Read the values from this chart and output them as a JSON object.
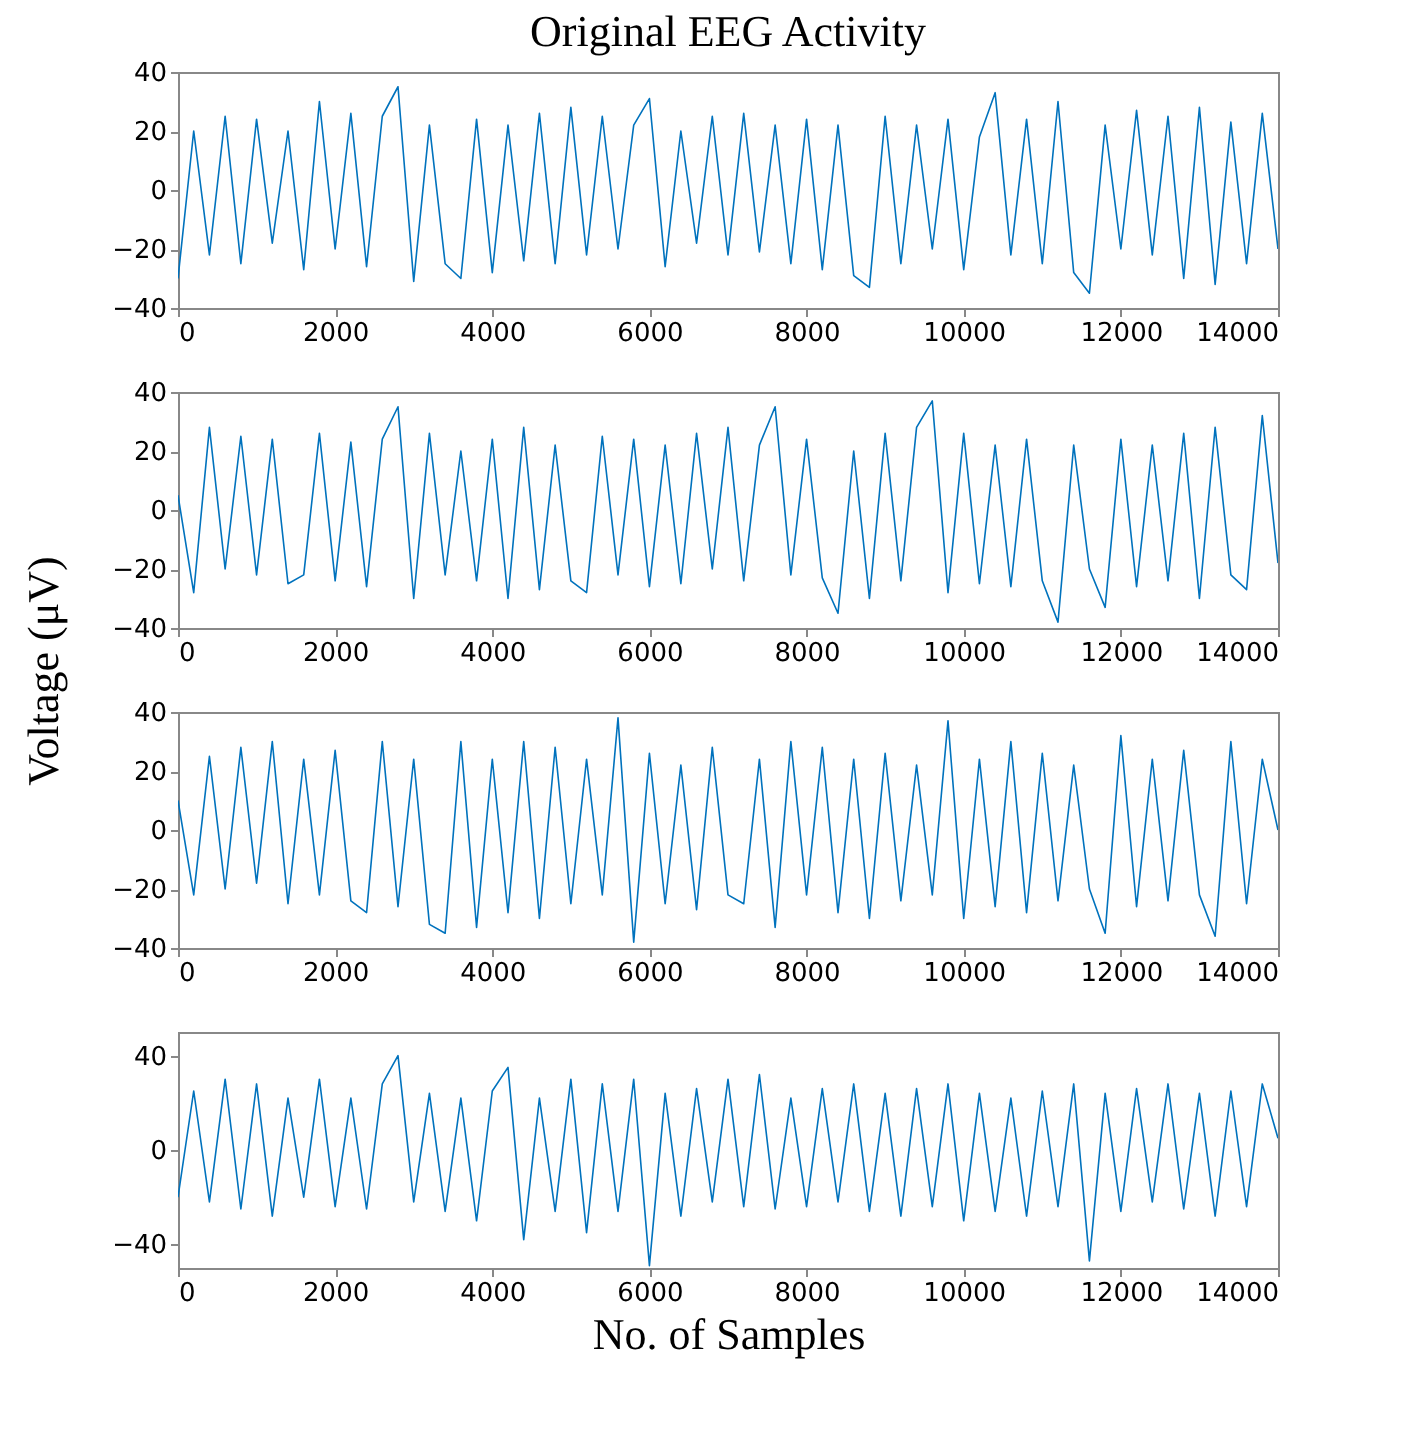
{
  "chart_data": [
    {
      "type": "line",
      "title": "Original EEG Activity",
      "x": [
        0,
        200,
        400,
        600,
        800,
        1000,
        1200,
        1400,
        1600,
        1800,
        2000,
        2200,
        2400,
        2600,
        2800,
        3000,
        3200,
        3400,
        3600,
        3800,
        4000,
        4200,
        4400,
        4600,
        4800,
        5000,
        5200,
        5400,
        5600,
        5800,
        6000,
        6200,
        6400,
        6600,
        6800,
        7000,
        7200,
        7400,
        7600,
        7800,
        8000,
        8200,
        8400,
        8600,
        8800,
        9000,
        9200,
        9400,
        9600,
        9800,
        10000,
        10200,
        10400,
        10600,
        10800,
        11000,
        11200,
        11400,
        11600,
        11800,
        12000,
        12200,
        12400,
        12600,
        12800,
        13000,
        13200,
        13400,
        13600,
        13800,
        14000
      ],
      "series": [
        {
          "color": "#0072bd",
          "values": [
            -30,
            20,
            -22,
            25,
            -25,
            24,
            -18,
            20,
            -27,
            30,
            -20,
            26,
            -26,
            25,
            35,
            -31,
            22,
            -25,
            -30,
            24,
            -28,
            22,
            -24,
            26,
            -25,
            28,
            -22,
            25,
            -20,
            22,
            31,
            -26,
            20,
            -18,
            25,
            -22,
            26,
            -21,
            22,
            -25,
            24,
            -27,
            22,
            -29,
            -33,
            25,
            -25,
            22,
            -20,
            24,
            -27,
            18,
            33,
            -22,
            24,
            -25,
            30,
            -28,
            -35,
            22,
            -20,
            27,
            -22,
            25,
            -30,
            28,
            -32,
            23,
            -25,
            26,
            -20
          ]
        }
      ],
      "xlim": [
        0,
        14000
      ],
      "xticks": [
        0,
        2000,
        4000,
        6000,
        8000,
        10000,
        12000,
        14000
      ],
      "ylim": [
        -40,
        40
      ],
      "yticks": [
        -40,
        -20,
        0,
        20,
        40
      ],
      "grid": false,
      "marker": "none",
      "line_style": "solid"
    },
    {
      "type": "line",
      "ylabel": "Voltage (μV)",
      "x": [
        0,
        200,
        400,
        600,
        800,
        1000,
        1200,
        1400,
        1600,
        1800,
        2000,
        2200,
        2400,
        2600,
        2800,
        3000,
        3200,
        3400,
        3600,
        3800,
        4000,
        4200,
        4400,
        4600,
        4800,
        5000,
        5200,
        5400,
        5600,
        5800,
        6000,
        6200,
        6400,
        6600,
        6800,
        7000,
        7200,
        7400,
        7600,
        7800,
        8000,
        8200,
        8400,
        8600,
        8800,
        9000,
        9200,
        9400,
        9600,
        9800,
        10000,
        10200,
        10400,
        10600,
        10800,
        11000,
        11200,
        11400,
        11600,
        11800,
        12000,
        12200,
        12400,
        12600,
        12800,
        13000,
        13200,
        13400,
        13600,
        13800,
        14000
      ],
      "series": [
        {
          "color": "#0072bd",
          "values": [
            5,
            -28,
            28,
            -20,
            25,
            -22,
            24,
            -25,
            -22,
            26,
            -24,
            23,
            -26,
            24,
            35,
            -30,
            26,
            -22,
            20,
            -24,
            24,
            -30,
            28,
            -27,
            22,
            -24,
            -28,
            25,
            -22,
            24,
            -26,
            22,
            -25,
            26,
            -20,
            28,
            -24,
            22,
            35,
            -22,
            24,
            -23,
            -35,
            20,
            -30,
            26,
            -24,
            28,
            37,
            -28,
            26,
            -25,
            22,
            -26,
            24,
            -24,
            -38,
            22,
            -20,
            -33,
            24,
            -26,
            22,
            -24,
            26,
            -30,
            28,
            -22,
            -27,
            32,
            -18
          ]
        }
      ],
      "xlim": [
        0,
        14000
      ],
      "xticks": [
        0,
        2000,
        4000,
        6000,
        8000,
        10000,
        12000,
        14000
      ],
      "ylim": [
        -40,
        40
      ],
      "yticks": [
        -40,
        -20,
        0,
        20,
        40
      ],
      "grid": false,
      "marker": "none",
      "line_style": "solid"
    },
    {
      "type": "line",
      "x": [
        0,
        200,
        400,
        600,
        800,
        1000,
        1200,
        1400,
        1600,
        1800,
        2000,
        2200,
        2400,
        2600,
        2800,
        3000,
        3200,
        3400,
        3600,
        3800,
        4000,
        4200,
        4400,
        4600,
        4800,
        5000,
        5200,
        5400,
        5600,
        5800,
        6000,
        6200,
        6400,
        6600,
        6800,
        7000,
        7200,
        7400,
        7600,
        7800,
        8000,
        8200,
        8400,
        8600,
        8800,
        9000,
        9200,
        9400,
        9600,
        9800,
        10000,
        10200,
        10400,
        10600,
        10800,
        11000,
        11200,
        11400,
        11600,
        11800,
        12000,
        12200,
        12400,
        12600,
        12800,
        13000,
        13200,
        13400,
        13600,
        13800,
        14000
      ],
      "series": [
        {
          "color": "#0072bd",
          "values": [
            10,
            -22,
            25,
            -20,
            28,
            -18,
            30,
            -25,
            24,
            -22,
            27,
            -24,
            -28,
            30,
            -26,
            24,
            -32,
            -35,
            30,
            -33,
            24,
            -28,
            30,
            -30,
            28,
            -25,
            24,
            -22,
            38,
            -38,
            26,
            -25,
            22,
            -27,
            28,
            -22,
            -25,
            24,
            -33,
            30,
            -22,
            28,
            -28,
            24,
            -30,
            26,
            -24,
            22,
            -22,
            37,
            -30,
            24,
            -26,
            30,
            -28,
            26,
            -24,
            22,
            -20,
            -35,
            32,
            -26,
            24,
            -24,
            27,
            -22,
            -36,
            30,
            -25,
            24,
            0
          ]
        }
      ],
      "xlim": [
        0,
        14000
      ],
      "xticks": [
        0,
        2000,
        4000,
        6000,
        8000,
        10000,
        12000,
        14000
      ],
      "ylim": [
        -40,
        40
      ],
      "yticks": [
        -40,
        -20,
        0,
        20,
        40
      ],
      "grid": false,
      "marker": "none",
      "line_style": "solid"
    },
    {
      "type": "line",
      "xlabel": "No. of Samples",
      "x": [
        0,
        200,
        400,
        600,
        800,
        1000,
        1200,
        1400,
        1600,
        1800,
        2000,
        2200,
        2400,
        2600,
        2800,
        3000,
        3200,
        3400,
        3600,
        3800,
        4000,
        4200,
        4400,
        4600,
        4800,
        5000,
        5200,
        5400,
        5600,
        5800,
        6000,
        6200,
        6400,
        6600,
        6800,
        7000,
        7200,
        7400,
        7600,
        7800,
        8000,
        8200,
        8400,
        8600,
        8800,
        9000,
        9200,
        9400,
        9600,
        9800,
        10000,
        10200,
        10400,
        10600,
        10800,
        11000,
        11200,
        11400,
        11600,
        11800,
        12000,
        12200,
        12400,
        12600,
        12800,
        13000,
        13200,
        13400,
        13600,
        13800,
        14000
      ],
      "series": [
        {
          "color": "#0072bd",
          "values": [
            -20,
            25,
            -22,
            30,
            -25,
            28,
            -28,
            22,
            -20,
            30,
            -24,
            22,
            -25,
            28,
            40,
            -22,
            24,
            -26,
            22,
            -30,
            25,
            35,
            -38,
            22,
            -26,
            30,
            -35,
            28,
            -26,
            30,
            -49,
            24,
            -28,
            26,
            -22,
            30,
            -24,
            32,
            -25,
            22,
            -24,
            26,
            -22,
            28,
            -26,
            24,
            -28,
            26,
            -24,
            28,
            -30,
            24,
            -26,
            22,
            -28,
            25,
            -24,
            28,
            -47,
            24,
            -26,
            26,
            -22,
            28,
            -25,
            24,
            -28,
            25,
            -24,
            28,
            5
          ]
        }
      ],
      "xlim": [
        0,
        14000
      ],
      "xticks": [
        0,
        2000,
        4000,
        6000,
        8000,
        10000,
        12000,
        14000
      ],
      "ylim": [
        -50,
        50
      ],
      "yticks": [
        -40,
        0,
        40
      ],
      "grid": false,
      "marker": "none",
      "line_style": "solid"
    }
  ]
}
